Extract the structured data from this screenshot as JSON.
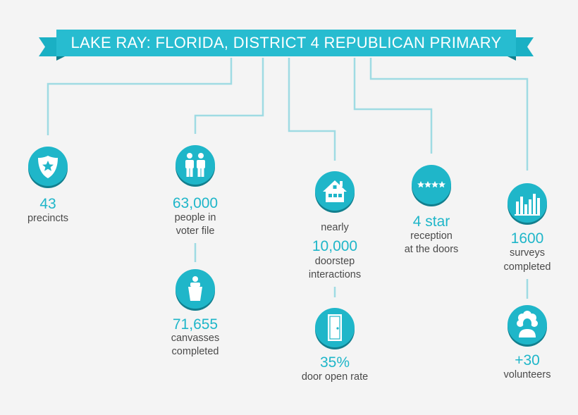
{
  "banner": {
    "title": "LAKE RAY: FLORIDA, DISTRICT 4 REPUBLICAN PRIMARY"
  },
  "colors": {
    "teal": "#1fb6c9",
    "teal_dark": "#127f8e",
    "line": "#9fdbe3",
    "text": "#4a4a4a",
    "background": "#f4f4f4"
  },
  "stats": {
    "precincts": {
      "icon": "police-badge-star-icon",
      "value": "43",
      "line1": "precincts"
    },
    "people": {
      "icon": "two-people-icon",
      "value": "63,000",
      "line1": "people in",
      "line2": "voter file"
    },
    "canvasses": {
      "icon": "podium-speaker-icon",
      "value": "71,655",
      "line1": "canvasses",
      "line2": "completed"
    },
    "interactions": {
      "icon": "house-icon",
      "prefix": "nearly",
      "value": "10,000",
      "line1": "doorstep",
      "line2": "interactions"
    },
    "door_rate": {
      "icon": "door-icon",
      "value": "35%",
      "line1": "door open rate"
    },
    "reception": {
      "icon": "four-stars-icon",
      "value": "4 star",
      "line1": "reception",
      "line2": "at the doors"
    },
    "surveys": {
      "icon": "bar-chart-icon",
      "value": "1600",
      "line1": "surveys",
      "line2": "completed"
    },
    "volunteers": {
      "icon": "volunteer-person-icon",
      "value": "+30",
      "line1": "volunteers"
    }
  }
}
